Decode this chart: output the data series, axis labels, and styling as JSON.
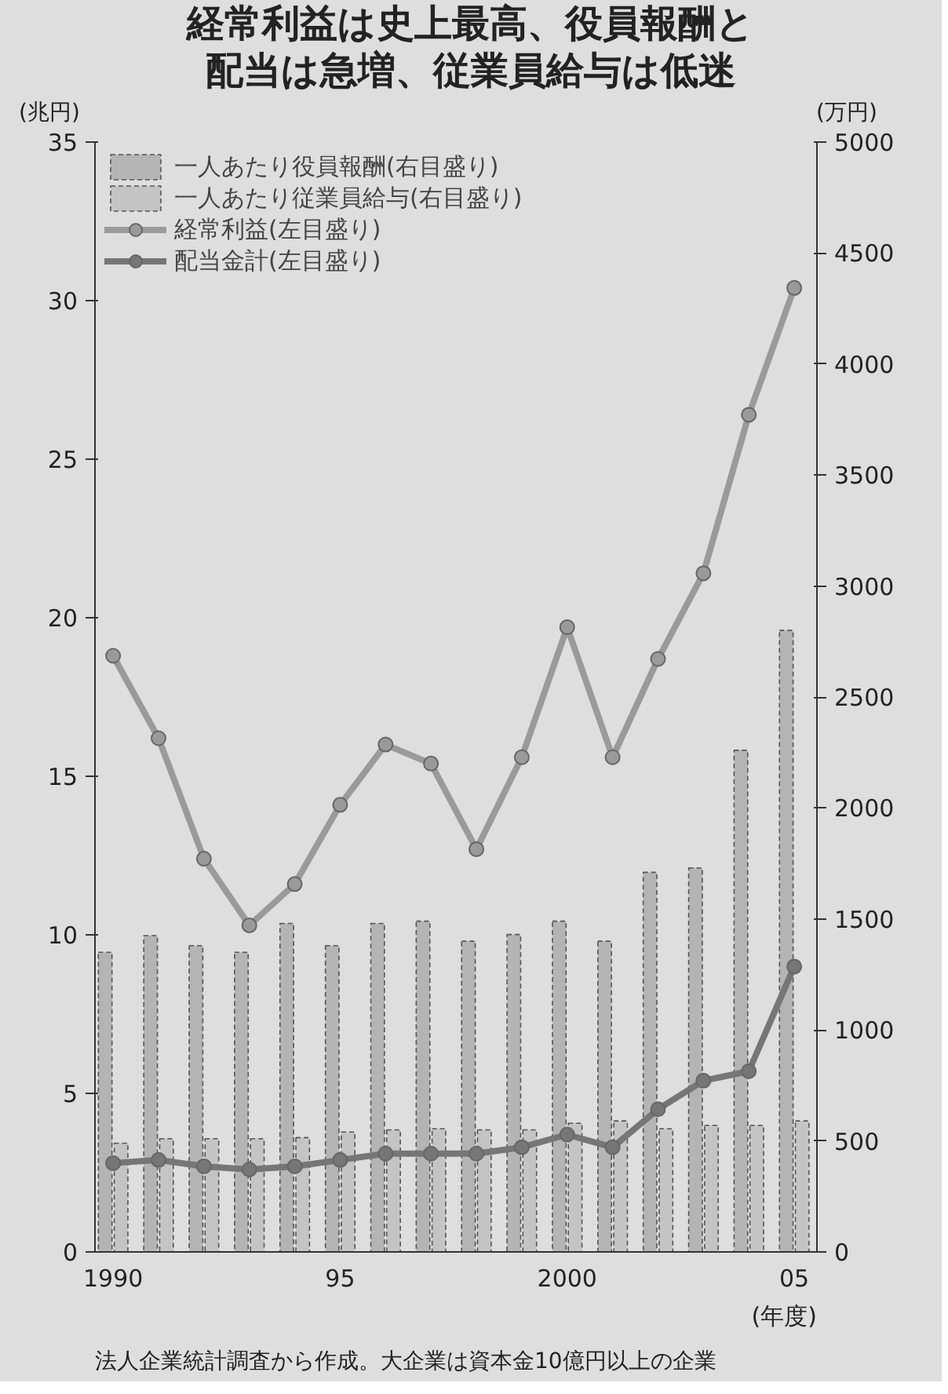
{
  "chart_data": {
    "type": "line",
    "title": "経常利益は史上最高、役員報酬と配当は急増、従業員給与は低迷",
    "xlabel": "(年度)",
    "x": [
      1990,
      1991,
      1992,
      1993,
      1994,
      1995,
      1996,
      1997,
      1998,
      1999,
      2000,
      2001,
      2002,
      2003,
      2004,
      2005
    ],
    "xlim": [
      1989.6,
      2005.5
    ],
    "xticks": [
      1990,
      {
        "value": 1995,
        "label": "95"
      },
      2000,
      {
        "value": 2005,
        "label": "05"
      }
    ],
    "ylabel": "(兆円)",
    "y2label": "(万円)",
    "ylim": [
      0,
      35
    ],
    "yticks": [
      0,
      5,
      10,
      15,
      20,
      25,
      30,
      35
    ],
    "y2lim": [
      0,
      5000
    ],
    "y2ticks": [
      0,
      500,
      1000,
      1500,
      2000,
      2500,
      3000,
      3500,
      4000,
      4500,
      5000
    ],
    "series": [
      {
        "name": "一人あたり役員報酬(右目盛り)",
        "type": "bar",
        "axis": "y2",
        "color": "#b4b4b4",
        "values": [
          1350,
          1425,
          1380,
          1350,
          1480,
          1380,
          1480,
          1490,
          1400,
          1430,
          1490,
          1400,
          1710,
          1730,
          2260,
          2800
        ]
      },
      {
        "name": "一人あたり従業員給与(右目盛り)",
        "type": "bar",
        "axis": "y2",
        "color": "#c4c4c4",
        "values": [
          490,
          510,
          510,
          510,
          515,
          540,
          550,
          555,
          550,
          550,
          580,
          590,
          555,
          570,
          570,
          590
        ]
      },
      {
        "name": "経常利益(左目盛り)",
        "color": "#9a9a9a",
        "values": [
          18.8,
          16.2,
          12.4,
          10.3,
          11.6,
          14.1,
          16.0,
          15.4,
          12.7,
          15.6,
          19.7,
          15.6,
          18.7,
          21.4,
          26.4,
          30.4
        ]
      },
      {
        "name": "配当金計(左目盛り)",
        "color": "#767676",
        "values": [
          2.8,
          2.9,
          2.7,
          2.6,
          2.7,
          2.9,
          3.1,
          3.1,
          3.1,
          3.3,
          3.7,
          3.3,
          4.5,
          5.4,
          5.7,
          9.0
        ]
      }
    ],
    "marker": "circle",
    "grid": false,
    "legend": "top left",
    "annotations": [
      "法人企業統計調査から作成。大企業は資本金10億円以上の企業"
    ]
  }
}
